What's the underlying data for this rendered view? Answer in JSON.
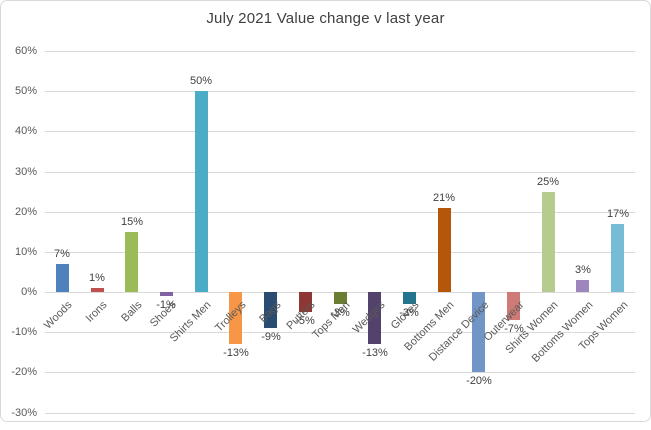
{
  "window": {
    "background": "#ffffff",
    "frame_border_color": "#d9d9d9"
  },
  "chart_data": {
    "type": "bar",
    "title": "July 2021 Value change v last year",
    "title_color": "#404040",
    "xlabel": "",
    "ylabel": "",
    "categories": [
      "Woods",
      "Irons",
      "Balls",
      "Shoes",
      "Shirts Men",
      "Trolleys",
      "Bags",
      "Putters",
      "Tops Men",
      "Wedges",
      "Gloves",
      "Bottoms Men",
      "Distance Device",
      "Outerwear",
      "Shirts Women",
      "Bottoms Women",
      "Tops Women"
    ],
    "values": [
      7,
      1,
      15,
      -1,
      50,
      -13,
      -9,
      -5,
      -3,
      -13,
      -3,
      21,
      -20,
      -7,
      25,
      3,
      17
    ],
    "data_labels": [
      "7%",
      "1%",
      "15%",
      "-1%",
      "50%",
      "-13%",
      "-9%",
      "-5%",
      "-3%",
      "-13%",
      "-3%",
      "21%",
      "-20%",
      "-7%",
      "25%",
      "3%",
      "17%"
    ],
    "bar_colors": [
      "#4F81BD",
      "#C0504D",
      "#9BBB59",
      "#8064A2",
      "#4BACC6",
      "#F79646",
      "#2B4C72",
      "#8E3836",
      "#6B7D33",
      "#53426B",
      "#23758F",
      "#B45708",
      "#7195C6",
      "#CE7B78",
      "#B5CC8E",
      "#9C86BB",
      "#76BCD6"
    ],
    "y_ticks": [
      "60%",
      "50%",
      "40%",
      "30%",
      "20%",
      "10%",
      "0%",
      "-10%",
      "-20%",
      "-30%"
    ],
    "y_tick_values": [
      60,
      50,
      40,
      30,
      20,
      10,
      0,
      -10,
      -20,
      -30
    ],
    "ylim": [
      -30,
      60
    ],
    "y_step": 10,
    "grid": true,
    "gridline_color": "#d9d9d9",
    "axis_label_color": "#595959",
    "data_label_color": "#404040",
    "legend": "none"
  }
}
